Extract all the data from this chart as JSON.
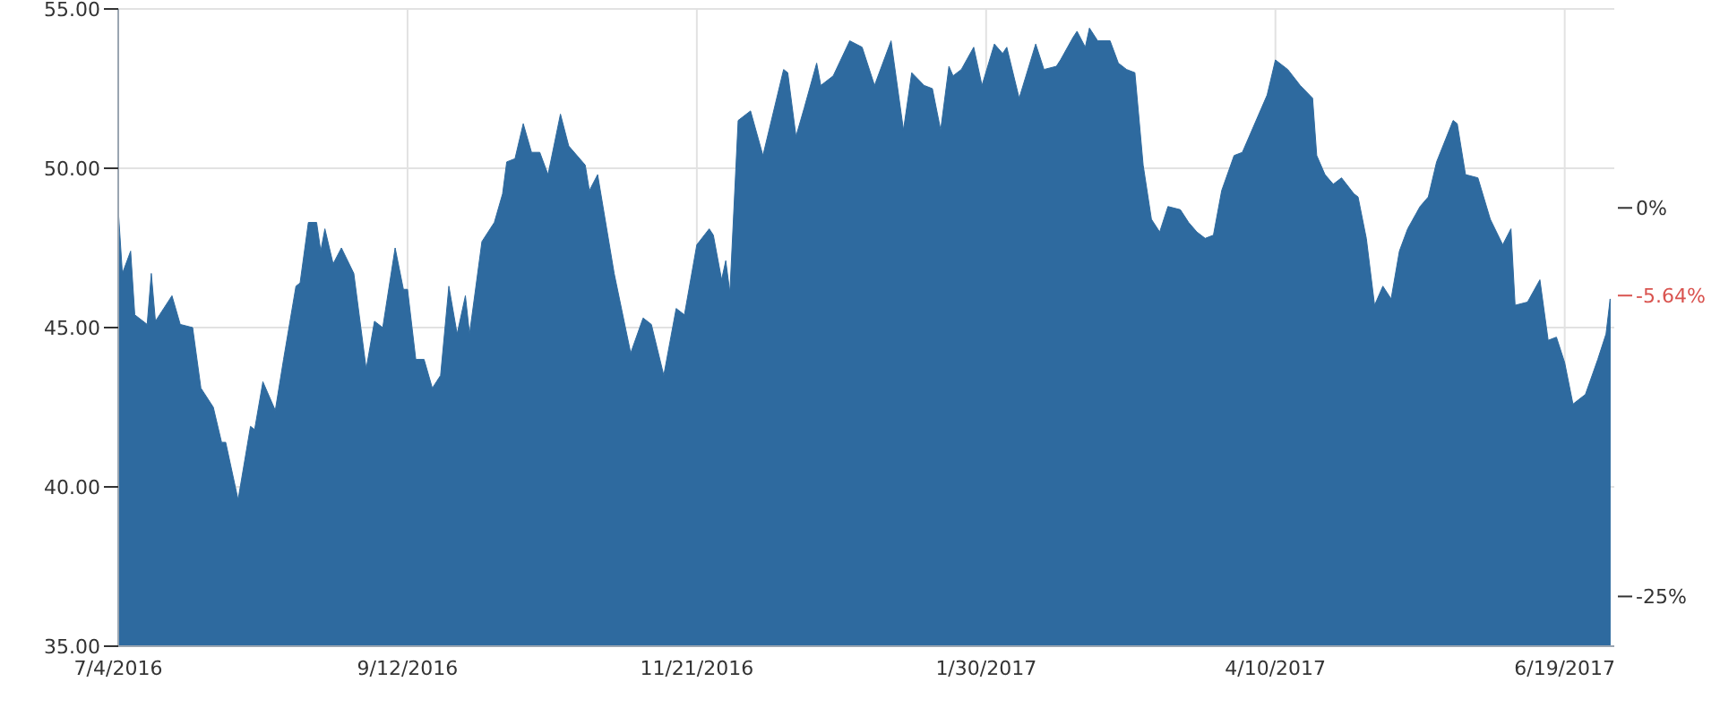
{
  "chart_data": {
    "type": "area",
    "color": "#2e6a9f",
    "grid": true,
    "x": [
      "2016-07-04",
      "2016-07-05",
      "2016-07-07",
      "2016-07-08",
      "2016-07-11",
      "2016-07-12",
      "2016-07-13",
      "2016-07-17",
      "2016-07-19",
      "2016-07-22",
      "2016-07-24",
      "2016-07-27",
      "2016-07-29",
      "2016-07-30",
      "2016-08-02",
      "2016-08-05",
      "2016-08-06",
      "2016-08-08",
      "2016-08-11",
      "2016-08-13",
      "2016-08-16",
      "2016-08-17",
      "2016-08-19",
      "2016-08-21",
      "2016-08-22",
      "2016-08-23",
      "2016-08-25",
      "2016-08-27",
      "2016-08-30",
      "2016-09-02",
      "2016-09-04",
      "2016-09-06",
      "2016-09-09",
      "2016-09-11",
      "2016-09-12",
      "2016-09-14",
      "2016-09-16",
      "2016-09-18",
      "2016-09-20",
      "2016-09-22",
      "2016-09-24",
      "2016-09-26",
      "2016-09-27",
      "2016-09-30",
      "2016-10-03",
      "2016-10-05",
      "2016-10-06",
      "2016-10-08",
      "2016-10-10",
      "2016-10-12",
      "2016-10-14",
      "2016-10-16",
      "2016-10-19",
      "2016-10-21",
      "2016-10-25",
      "2016-10-26",
      "2016-10-28",
      "2016-11-01",
      "2016-11-05",
      "2016-11-08",
      "2016-11-10",
      "2016-11-13",
      "2016-11-16",
      "2016-11-18",
      "2016-11-21",
      "2016-11-24",
      "2016-11-25",
      "2016-11-27",
      "2016-11-28",
      "2016-11-29",
      "2016-12-01",
      "2016-12-04",
      "2016-12-07",
      "2016-12-12",
      "2016-12-13",
      "2016-12-15",
      "2016-12-17",
      "2016-12-20",
      "2016-12-21",
      "2016-12-24",
      "2016-12-28",
      "2016-12-31",
      "2017-01-03",
      "2017-01-07",
      "2017-01-10",
      "2017-01-12",
      "2017-01-15",
      "2017-01-17",
      "2017-01-19",
      "2017-01-21",
      "2017-01-22",
      "2017-01-24",
      "2017-01-27",
      "2017-01-29",
      "2017-02-01",
      "2017-02-03",
      "2017-02-04",
      "2017-02-07",
      "2017-02-11",
      "2017-02-13",
      "2017-02-16",
      "2017-02-17",
      "2017-02-20",
      "2017-02-21",
      "2017-02-23",
      "2017-02-24",
      "2017-02-26",
      "2017-03-01",
      "2017-03-03",
      "2017-03-05",
      "2017-03-07",
      "2017-03-09",
      "2017-03-11",
      "2017-03-13",
      "2017-03-15",
      "2017-03-18",
      "2017-03-20",
      "2017-03-22",
      "2017-03-24",
      "2017-03-26",
      "2017-03-28",
      "2017-03-31",
      "2017-04-02",
      "2017-04-04",
      "2017-04-08",
      "2017-04-10",
      "2017-04-13",
      "2017-04-16",
      "2017-04-19",
      "2017-04-20",
      "2017-04-22",
      "2017-04-24",
      "2017-04-26",
      "2017-04-29",
      "2017-04-30",
      "2017-05-02",
      "2017-05-04",
      "2017-05-06",
      "2017-05-08",
      "2017-05-10",
      "2017-05-12",
      "2017-05-15",
      "2017-05-17",
      "2017-05-19",
      "2017-05-23",
      "2017-05-24",
      "2017-05-26",
      "2017-05-29",
      "2017-06-01",
      "2017-06-04",
      "2017-06-06",
      "2017-06-07",
      "2017-06-10",
      "2017-06-13",
      "2017-06-15",
      "2017-06-17",
      "2017-06-19",
      "2017-06-21",
      "2017-06-24",
      "2017-06-27",
      "2017-06-29",
      "2017-06-30"
    ],
    "values": [
      48.7,
      46.7,
      47.4,
      45.4,
      45.1,
      46.7,
      45.2,
      46.0,
      45.1,
      45.0,
      43.1,
      42.5,
      41.4,
      41.4,
      39.6,
      41.9,
      41.8,
      43.3,
      42.4,
      44.0,
      46.3,
      46.4,
      48.3,
      48.3,
      47.4,
      48.1,
      47.0,
      47.5,
      46.7,
      43.7,
      45.2,
      45.0,
      47.5,
      46.2,
      46.2,
      44.0,
      44.0,
      43.1,
      43.5,
      46.3,
      44.8,
      46.0,
      44.8,
      47.7,
      48.3,
      49.2,
      50.2,
      50.3,
      51.4,
      50.5,
      50.5,
      49.8,
      51.7,
      50.7,
      50.1,
      49.3,
      49.8,
      46.7,
      44.2,
      45.3,
      45.1,
      43.5,
      45.6,
      45.4,
      47.6,
      48.1,
      47.9,
      46.5,
      47.1,
      46.1,
      51.5,
      51.8,
      50.4,
      53.1,
      53.0,
      51.0,
      51.9,
      53.3,
      52.6,
      52.9,
      54.0,
      53.8,
      52.6,
      54.0,
      51.2,
      53.0,
      52.6,
      52.5,
      51.2,
      53.2,
      52.9,
      53.1,
      53.8,
      52.6,
      53.9,
      53.6,
      53.8,
      52.2,
      53.9,
      53.1,
      53.2,
      53.4,
      54.1,
      54.3,
      53.8,
      54.4,
      54.0,
      54.0,
      53.3,
      53.1,
      53.0,
      50.1,
      48.4,
      48.0,
      48.8,
      48.7,
      48.3,
      48.0,
      47.8,
      47.9,
      49.3,
      50.4,
      50.5,
      51.1,
      52.3,
      53.4,
      53.1,
      52.6,
      52.2,
      50.4,
      49.8,
      49.5,
      49.7,
      49.2,
      49.1,
      47.8,
      45.7,
      46.3,
      45.9,
      47.4,
      48.1,
      48.8,
      49.1,
      50.2,
      51.5,
      51.4,
      49.8,
      49.7,
      48.4,
      47.6,
      48.1,
      45.7,
      45.8,
      46.5,
      44.6,
      44.7,
      43.9,
      42.6,
      42.9,
      44.0,
      44.8,
      45.9
    ],
    "xlim": [
      "2016-07-04",
      "2017-07-01"
    ],
    "xticks": [
      {
        "value": "2016-07-04",
        "label": "7/4/2016"
      },
      {
        "value": "2016-09-12",
        "label": "9/12/2016"
      },
      {
        "value": "2016-11-21",
        "label": "11/21/2016"
      },
      {
        "value": "2017-01-30",
        "label": "1/30/2017"
      },
      {
        "value": "2017-04-10",
        "label": "4/10/2017"
      },
      {
        "value": "2017-06-19",
        "label": "6/19/2017"
      }
    ],
    "ylim": [
      35,
      55
    ],
    "yticks": [
      {
        "value": 35,
        "label": "35.00"
      },
      {
        "value": 40,
        "label": "40.00"
      },
      {
        "value": 45,
        "label": "45.00"
      },
      {
        "value": 50,
        "label": "50.00"
      },
      {
        "value": 55,
        "label": "55.00"
      }
    ],
    "y2lim": [
      -28.2,
      12.8
    ],
    "y2ticks": [
      {
        "value": 0,
        "label": "0%"
      },
      {
        "value": -25,
        "label": "-25%"
      }
    ],
    "ref_lines": [
      {
        "axis": "y2",
        "value": -5.64,
        "label": "-5.64%",
        "color": "#d9534f"
      }
    ]
  }
}
